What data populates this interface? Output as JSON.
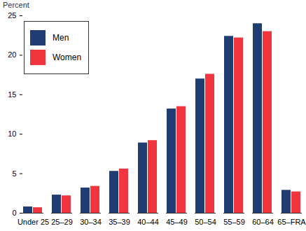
{
  "chart_data": {
    "type": "bar",
    "y_label": "Percent",
    "categories": [
      "Under 25",
      "25–29",
      "30–34",
      "35–39",
      "40–44",
      "45–49",
      "50–54",
      "55–59",
      "60–64",
      "65–FRA"
    ],
    "series": [
      {
        "name": "Men",
        "color": "#1f3d73",
        "values": [
          0.8,
          2.3,
          3.2,
          5.3,
          8.9,
          13.2,
          17.0,
          22.4,
          24.0,
          2.9
        ]
      },
      {
        "name": "Women",
        "color": "#f0353f",
        "values": [
          0.7,
          2.2,
          3.4,
          5.6,
          9.2,
          13.5,
          17.6,
          22.2,
          23.0,
          2.7
        ]
      }
    ],
    "ylim": [
      0,
      25
    ],
    "yticks": [
      0,
      5,
      10,
      15,
      20,
      25
    ],
    "grid": false,
    "legend": "top-left"
  }
}
